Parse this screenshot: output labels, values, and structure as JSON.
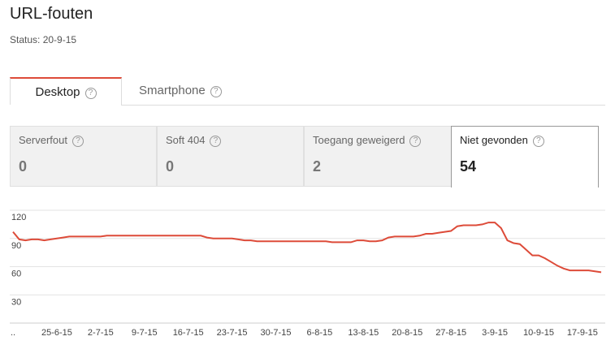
{
  "header": {
    "title": "URL-fouten",
    "status": "Status: 20-9-15"
  },
  "help": "?",
  "tabs": [
    "Desktop",
    "Smartphone"
  ],
  "cards": [
    {
      "label": "Serverfout",
      "value": "0"
    },
    {
      "label": "Soft 404",
      "value": "0"
    },
    {
      "label": "Toegang geweigerd",
      "value": "2"
    },
    {
      "label": "Niet gevonden",
      "value": "54"
    }
  ],
  "chart_data": {
    "type": "line",
    "color": "#dd4b39",
    "grid": true,
    "categories": [
      "..",
      null,
      null,
      null,
      null,
      null,
      null,
      "25-6-15",
      null,
      null,
      null,
      null,
      null,
      null,
      "2-7-15",
      null,
      null,
      null,
      null,
      null,
      null,
      "9-7-15",
      null,
      null,
      null,
      null,
      null,
      null,
      "16-7-15",
      null,
      null,
      null,
      null,
      null,
      null,
      "23-7-15",
      null,
      null,
      null,
      null,
      null,
      null,
      "30-7-15",
      null,
      null,
      null,
      null,
      null,
      null,
      "6-8-15",
      null,
      null,
      null,
      null,
      null,
      null,
      "13-8-15",
      null,
      null,
      null,
      null,
      null,
      null,
      "20-8-15",
      null,
      null,
      null,
      null,
      null,
      null,
      "27-8-15",
      null,
      null,
      null,
      null,
      null,
      null,
      "3-9-15",
      null,
      null,
      null,
      null,
      null,
      null,
      "10-9-15",
      null,
      null,
      null,
      null,
      null,
      null,
      "17-9-15",
      null,
      null,
      null
    ],
    "values": [
      97,
      89,
      88,
      89,
      89,
      88,
      89,
      90,
      91,
      92,
      92,
      92,
      92,
      92,
      92,
      93,
      93,
      93,
      93,
      93,
      93,
      93,
      93,
      93,
      93,
      93,
      93,
      93,
      93,
      93,
      93,
      91,
      90,
      90,
      90,
      90,
      89,
      88,
      88,
      87,
      87,
      87,
      87,
      87,
      87,
      87,
      87,
      87,
      87,
      87,
      87,
      86,
      86,
      86,
      86,
      88,
      88,
      87,
      87,
      88,
      91,
      92,
      92,
      92,
      92,
      93,
      95,
      95,
      96,
      97,
      98,
      103,
      104,
      104,
      104,
      105,
      107,
      107,
      101,
      88,
      85,
      84,
      78,
      72,
      72,
      69,
      65,
      61,
      58,
      56,
      56,
      56,
      56,
      55,
      54
    ],
    "ylim": [
      0,
      120
    ],
    "yticks": [
      30,
      60,
      90,
      120
    ]
  }
}
